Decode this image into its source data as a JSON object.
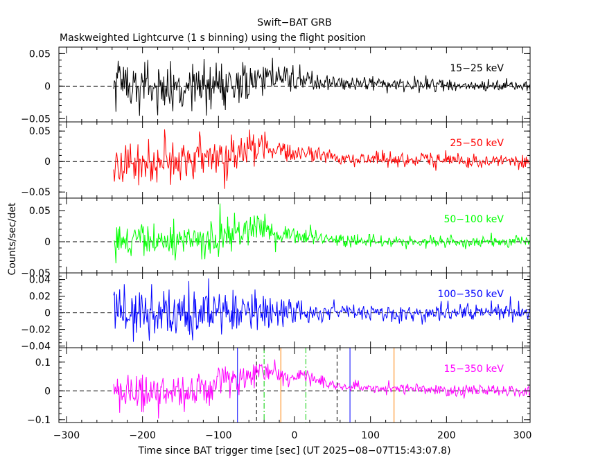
{
  "header": {
    "title": "Swift−BAT GRB",
    "subtitle": "Maskweighted Lightcurve (1 s binning) using the flight position"
  },
  "chart_data": {
    "type": "line",
    "xlabel": "Time since BAT trigger time [sec] (UT 2025−08−07T15:43:07.8)",
    "ylabel": "Counts/sec/det",
    "xlim": [
      -310,
      310
    ],
    "x_ticks": [
      -300,
      -200,
      -100,
      0,
      100,
      200,
      300
    ],
    "x_tick_labels": [
      "−300",
      "−200",
      "−100",
      "0",
      "100",
      "200",
      "300"
    ],
    "data_range": [
      -238,
      310
    ],
    "binning_sec": 1,
    "panels": [
      {
        "band": "15−25 keV",
        "color": "#000000",
        "ylim": [
          -0.055,
          0.06
        ],
        "y_ticks": [
          -0.05,
          0,
          0.05
        ],
        "y_tick_labels": [
          "−0.05",
          "0",
          "0.05"
        ],
        "envelope": {
          "t": [
            -238,
            -150,
            -100,
            -60,
            -45,
            -10,
            10,
            60,
            150,
            250,
            310
          ],
          "mean": [
            0,
            0,
            0.003,
            0.008,
            0.015,
            0.012,
            0.01,
            0.004,
            0.002,
            0,
            0
          ],
          "noise": [
            0.019,
            0.019,
            0.019,
            0.017,
            0.015,
            0.01,
            0.008,
            0.005,
            0.005,
            0.005,
            0.005
          ]
        }
      },
      {
        "band": "25−50 keV",
        "color": "#ff0000",
        "ylim": [
          -0.06,
          0.065
        ],
        "y_ticks": [
          -0.05,
          0,
          0.05
        ],
        "y_tick_labels": [
          "−0.05",
          "0",
          "0.05"
        ],
        "envelope": {
          "t": [
            -238,
            -150,
            -100,
            -60,
            -45,
            -18,
            0,
            15,
            60,
            150,
            250,
            310
          ],
          "mean": [
            0,
            0,
            0.003,
            0.02,
            0.028,
            0.02,
            0.013,
            0.015,
            0.005,
            0.003,
            0,
            0
          ],
          "noise": [
            0.019,
            0.019,
            0.019,
            0.017,
            0.015,
            0.01,
            0.008,
            0.008,
            0.006,
            0.006,
            0.006,
            0.006
          ]
        }
      },
      {
        "band": "50−100 keV",
        "color": "#00ff00",
        "ylim": [
          -0.05,
          0.07
        ],
        "y_ticks": [
          -0.05,
          0,
          0.05
        ],
        "y_tick_labels": [
          "−0.05",
          "0",
          "0.05"
        ],
        "envelope": {
          "t": [
            -238,
            -150,
            -100,
            -70,
            -45,
            -18,
            15,
            60,
            150,
            250,
            310
          ],
          "mean": [
            0,
            0,
            0.005,
            0.02,
            0.028,
            0.01,
            0.01,
            0.002,
            0,
            0,
            0
          ],
          "noise": [
            0.014,
            0.014,
            0.015,
            0.015,
            0.013,
            0.009,
            0.007,
            0.005,
            0.005,
            0.005,
            0.005
          ]
        }
      },
      {
        "band": "100−350 keV",
        "color": "#0000ff",
        "ylim": [
          -0.042,
          0.048
        ],
        "y_ticks": [
          -0.04,
          -0.02,
          0,
          0.02,
          0.04
        ],
        "y_tick_labels": [
          "−0.04",
          "−0.02",
          "0",
          "0.02",
          "0.04"
        ],
        "envelope": {
          "t": [
            -238,
            -150,
            -100,
            -50,
            0,
            60,
            150,
            250,
            310
          ],
          "mean": [
            0,
            0,
            0,
            0.002,
            0.002,
            0.001,
            0,
            0,
            0
          ],
          "noise": [
            0.016,
            0.016,
            0.015,
            0.011,
            0.007,
            0.005,
            0.005,
            0.005,
            0.005
          ]
        }
      },
      {
        "band": "15−350 keV",
        "color": "#ff00ff",
        "ylim": [
          -0.11,
          0.15
        ],
        "y_ticks": [
          -0.1,
          0,
          0.1
        ],
        "y_tick_labels": [
          "−0.1",
          "0",
          "0.1"
        ],
        "envelope": {
          "t": [
            -238,
            -150,
            -100,
            -70,
            -50,
            -40,
            -18,
            0,
            10,
            15,
            60,
            150,
            250,
            310
          ],
          "mean": [
            0,
            0,
            0.015,
            0.04,
            0.07,
            0.08,
            0.05,
            0.04,
            0.05,
            0.05,
            0.015,
            0.005,
            0,
            0
          ],
          "noise": [
            0.035,
            0.035,
            0.035,
            0.03,
            0.025,
            0.02,
            0.015,
            0.012,
            0.012,
            0.012,
            0.01,
            0.01,
            0.01,
            0.01
          ]
        }
      }
    ],
    "vertical_markers": [
      {
        "x": -75,
        "color": "#0000ff",
        "style": "solid"
      },
      {
        "x": 73,
        "color": "#0000ff",
        "style": "solid"
      },
      {
        "x": -50,
        "color": "#000000",
        "style": "dashed"
      },
      {
        "x": 56,
        "color": "#000000",
        "style": "dashed"
      },
      {
        "x": -40,
        "color": "#00cc00",
        "style": "dashdot"
      },
      {
        "x": 15,
        "color": "#00cc00",
        "style": "dashdot"
      },
      {
        "x": -18,
        "color": "#ff8000",
        "style": "solid"
      },
      {
        "x": 131,
        "color": "#ff8000",
        "style": "solid"
      }
    ]
  }
}
